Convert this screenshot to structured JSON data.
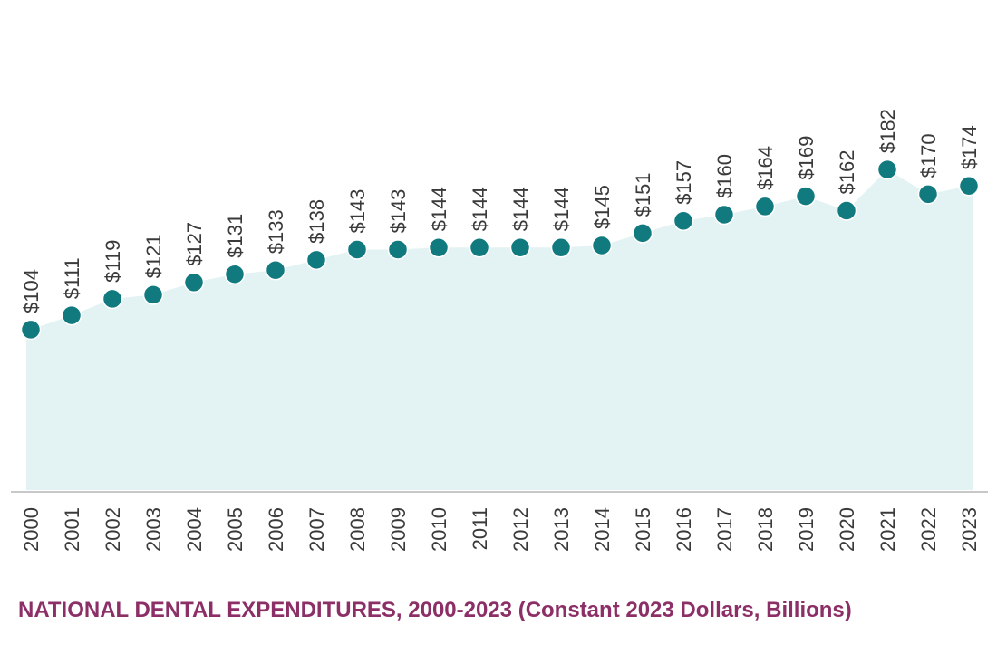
{
  "chart_data": {
    "type": "area",
    "title": "NATIONAL DENTAL EXPENDITURES, 2000-2023 (Constant 2023 Dollars, Billions)",
    "xlabel": "",
    "ylabel": "",
    "x": [
      "2000",
      "2001",
      "2002",
      "2003",
      "2004",
      "2005",
      "2006",
      "2007",
      "2008",
      "2009",
      "2010",
      "2011",
      "2012",
      "2013",
      "2014",
      "2015",
      "2016",
      "2017",
      "2018",
      "2019",
      "2020",
      "2021",
      "2022",
      "2023"
    ],
    "values": [
      104,
      111,
      119,
      121,
      127,
      131,
      133,
      138,
      143,
      143,
      144,
      144,
      144,
      144,
      145,
      151,
      157,
      160,
      164,
      169,
      162,
      182,
      170,
      174
    ],
    "value_labels": [
      "$104",
      "$111",
      "$119",
      "$121",
      "$127",
      "$131",
      "$133",
      "$138",
      "$143",
      "$143",
      "$144",
      "$144",
      "$144",
      "$144",
      "$145",
      "$151",
      "$157",
      "$160",
      "$164",
      "$169",
      "$162",
      "$182",
      "$170",
      "$174"
    ],
    "ylim": [
      -20,
      220
    ],
    "grid": false,
    "colors": {
      "area_fill": "#e3f2f3",
      "marker": "#117a7f",
      "baseline": "#c8c8c8",
      "title": "#8c2f67",
      "text": "#3a3a3a"
    }
  }
}
